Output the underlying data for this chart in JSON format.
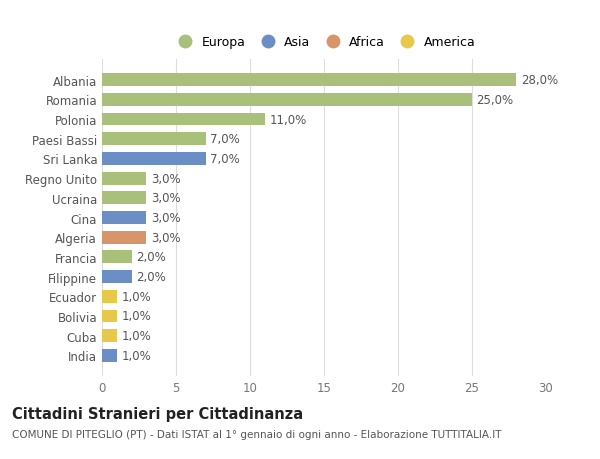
{
  "countries": [
    "Albania",
    "Romania",
    "Polonia",
    "Paesi Bassi",
    "Sri Lanka",
    "Regno Unito",
    "Ucraina",
    "Cina",
    "Algeria",
    "Francia",
    "Filippine",
    "Ecuador",
    "Bolivia",
    "Cuba",
    "India"
  ],
  "values": [
    28.0,
    25.0,
    11.0,
    7.0,
    7.0,
    3.0,
    3.0,
    3.0,
    3.0,
    2.0,
    2.0,
    1.0,
    1.0,
    1.0,
    1.0
  ],
  "continents": [
    "Europa",
    "Europa",
    "Europa",
    "Europa",
    "Asia",
    "Europa",
    "Europa",
    "Asia",
    "Africa",
    "Europa",
    "Asia",
    "America",
    "America",
    "America",
    "Asia"
  ],
  "colors": {
    "Europa": "#a8c07a",
    "Asia": "#6b8ec4",
    "Africa": "#d9956a",
    "America": "#e8c84a"
  },
  "legend_order": [
    "Europa",
    "Asia",
    "Africa",
    "America"
  ],
  "xlim": [
    0,
    30
  ],
  "xticks": [
    0,
    5,
    10,
    15,
    20,
    25,
    30
  ],
  "title": "Cittadini Stranieri per Cittadinanza",
  "subtitle": "COMUNE DI PITEGLIO (PT) - Dati ISTAT al 1° gennaio di ogni anno - Elaborazione TUTTITALIA.IT",
  "background_color": "#ffffff",
  "grid_color": "#dddddd",
  "bar_height": 0.65,
  "label_fontsize": 8.5,
  "tick_fontsize": 8.5,
  "title_fontsize": 10.5,
  "subtitle_fontsize": 7.5
}
